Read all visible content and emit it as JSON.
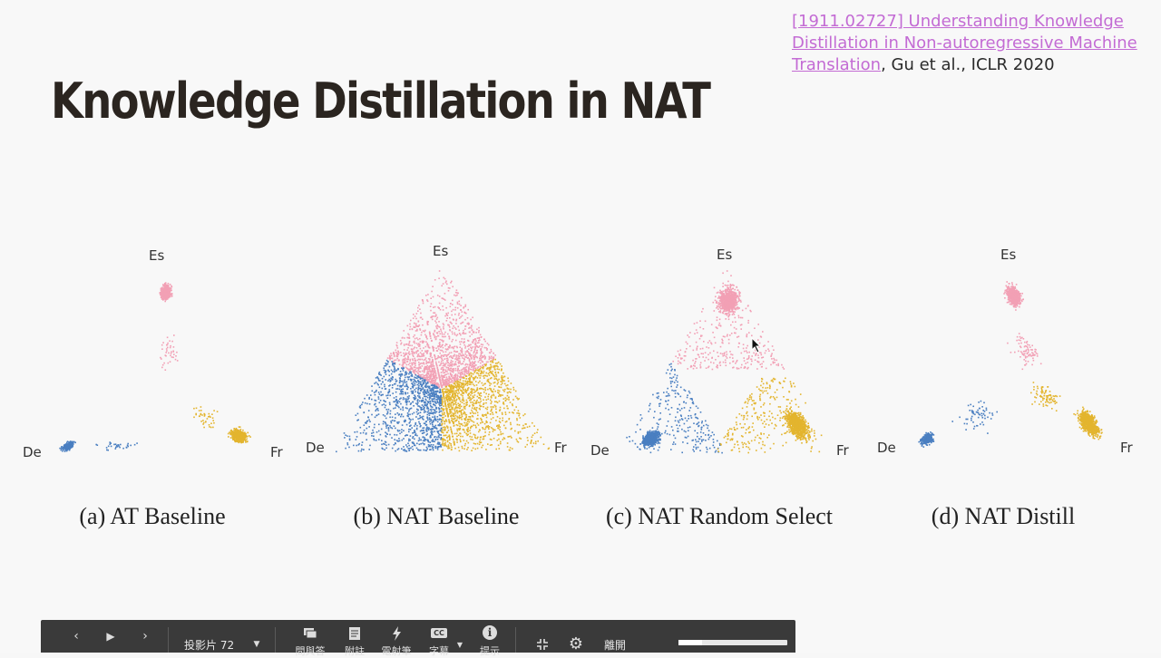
{
  "reference": {
    "link_text": "[1911.02727] Understanding Knowledge Distillation in Non-autoregressive Machine Translation",
    "suffix": ", Gu et al., ICLR 2020"
  },
  "slide_title": "Knowledge Distillation in NAT",
  "colors": {
    "de": "#4a7fc1",
    "es": "#f2a0b5",
    "fr": "#e3b52e",
    "title": "#2b2520",
    "link": "#c36bd4"
  },
  "panels": [
    {
      "caption": "(a) AT Baseline",
      "es": "Es",
      "de": "De",
      "fr": "Fr"
    },
    {
      "caption": "(b) NAT Baseline",
      "es": "Es",
      "de": "De",
      "fr": "Fr"
    },
    {
      "caption": "(c) NAT Random Select",
      "es": "Es",
      "de": "De",
      "fr": "Fr"
    },
    {
      "caption": "(d) NAT Distill",
      "es": "Es",
      "de": "De",
      "fr": "Fr"
    }
  ],
  "toolbar": {
    "slide_label": "投影片 72",
    "qa_label": "問與答",
    "notes_label": "附註",
    "tools_label": "電射筆",
    "captions_label": "字幕",
    "info_label": "提示",
    "exit_label": "離開",
    "progress": 0.22,
    "icons": [
      "prev-icon",
      "play-icon",
      "next-icon",
      "dropdown-icon",
      "chat-icon",
      "notes-icon",
      "laser-icon",
      "cc-icon",
      "info-icon",
      "exit-fullscreen-icon",
      "gear-icon"
    ]
  }
}
